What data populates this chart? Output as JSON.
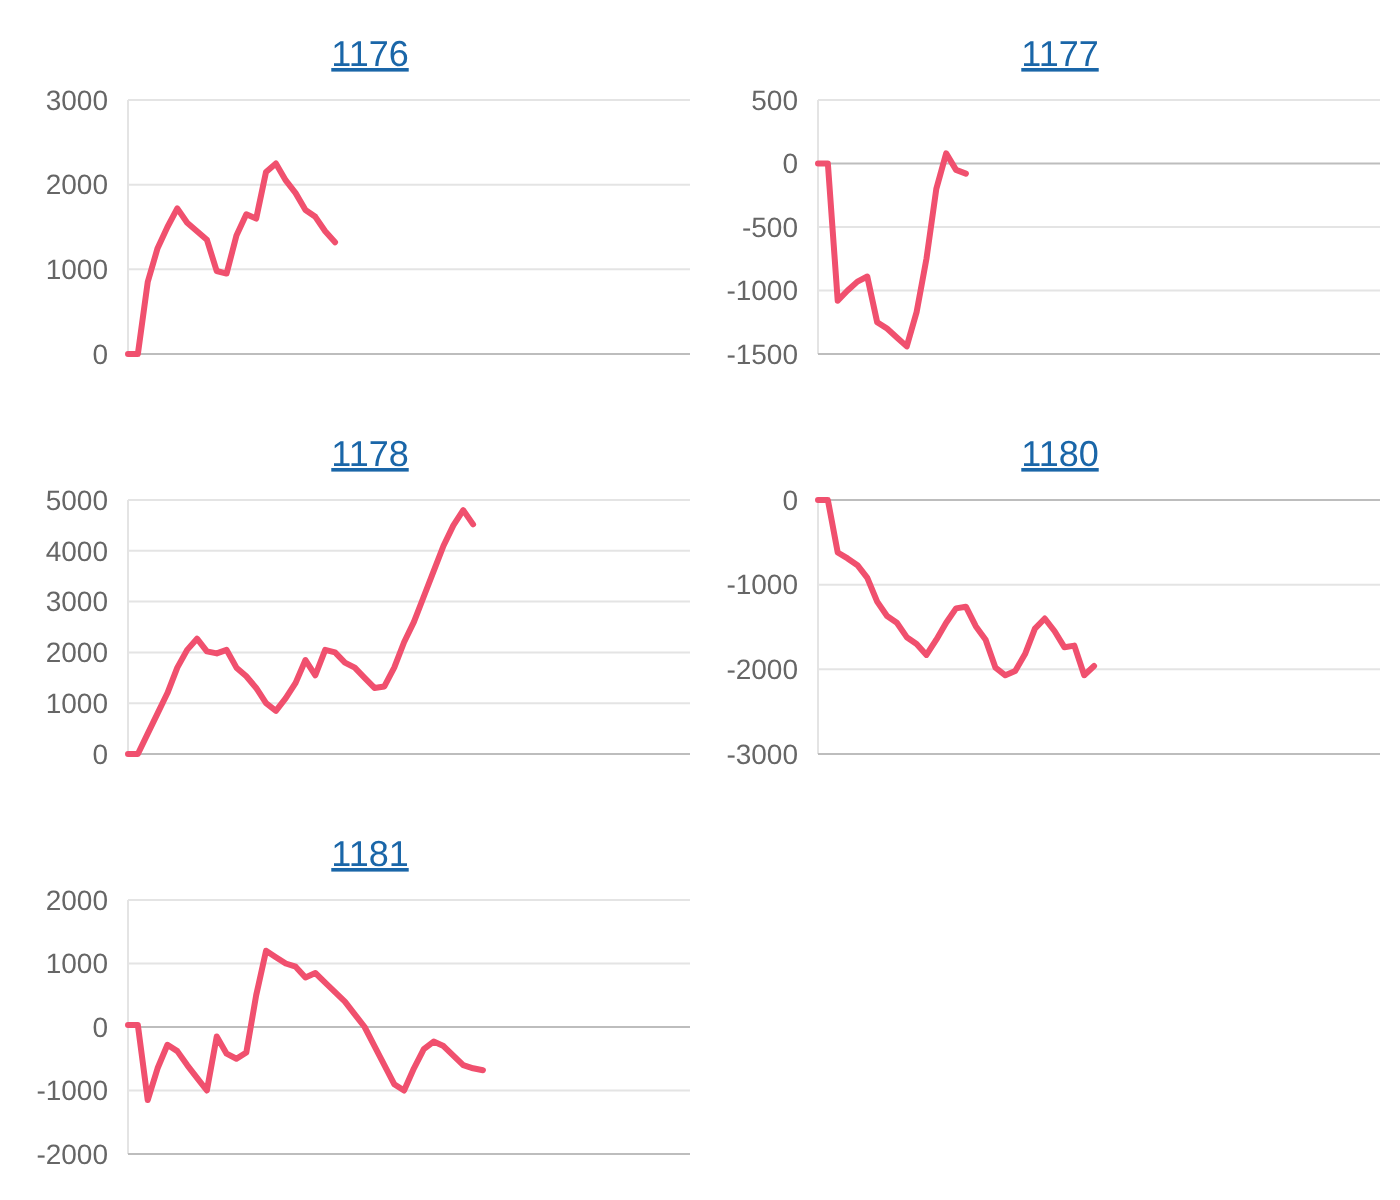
{
  "chart_data": [
    {
      "type": "line",
      "title": "1176",
      "categories": [
        null,
        null,
        null,
        null,
        null,
        null,
        null,
        null,
        null,
        null,
        null,
        null,
        null,
        null,
        null,
        null,
        null,
        null,
        null,
        null,
        null,
        null,
        null,
        null,
        null,
        null,
        null,
        null,
        null,
        null,
        null,
        null,
        null,
        null,
        null,
        null,
        null,
        null,
        null,
        null,
        null,
        null,
        null,
        null,
        null,
        null,
        null,
        null,
        null,
        null,
        null,
        null,
        null,
        null,
        null,
        null,
        null,
        null
      ],
      "series": [
        {
          "color": "#f0506e",
          "values": [
            0,
            0,
            850,
            1250,
            1500,
            1720,
            1550,
            1450,
            1350,
            980,
            950,
            1400,
            1650,
            1600,
            2150,
            2250,
            2050,
            1900,
            1700,
            1620,
            1450,
            1320,
            null,
            null,
            null,
            null,
            null,
            null,
            null,
            null,
            null,
            null,
            null,
            null,
            null,
            null,
            null,
            null,
            null,
            null,
            null,
            null,
            null,
            null,
            null,
            null,
            null,
            null,
            null,
            null,
            null,
            null,
            null,
            null,
            null,
            null,
            null,
            null
          ]
        }
      ],
      "ylim": [
        0,
        3000
      ],
      "yticks": [
        0,
        1000,
        2000,
        3000
      ],
      "grid": "y",
      "tick_labels": "y",
      "marker": "none",
      "line_style": "solid"
    },
    {
      "type": "line",
      "title": "1177",
      "categories": [
        null,
        null,
        null,
        null,
        null,
        null,
        null,
        null,
        null,
        null,
        null,
        null,
        null,
        null,
        null,
        null,
        null,
        null,
        null,
        null,
        null,
        null,
        null,
        null,
        null,
        null,
        null,
        null,
        null,
        null,
        null,
        null,
        null,
        null,
        null,
        null,
        null,
        null,
        null,
        null,
        null,
        null,
        null,
        null,
        null,
        null,
        null,
        null,
        null,
        null,
        null,
        null,
        null,
        null,
        null,
        null,
        null,
        null
      ],
      "series": [
        {
          "color": "#f0506e",
          "values": [
            0,
            0,
            -1080,
            -1000,
            -930,
            -890,
            -1250,
            -1300,
            -1370,
            -1440,
            -1170,
            -750,
            -200,
            80,
            -50,
            -80,
            null,
            null,
            null,
            null,
            null,
            null,
            null,
            null,
            null,
            null,
            null,
            null,
            null,
            null,
            null,
            null,
            null,
            null,
            null,
            null,
            null,
            null,
            null,
            null,
            null,
            null,
            null,
            null,
            null,
            null,
            null,
            null,
            null,
            null,
            null,
            null,
            null,
            null,
            null,
            null,
            null,
            null
          ]
        }
      ],
      "ylim": [
        -1500,
        500
      ],
      "yticks": [
        -1500,
        -1000,
        -500,
        0,
        500
      ],
      "grid": "y",
      "tick_labels": "y",
      "marker": "none",
      "line_style": "solid"
    },
    {
      "type": "line",
      "title": "1178",
      "categories": [
        null,
        null,
        null,
        null,
        null,
        null,
        null,
        null,
        null,
        null,
        null,
        null,
        null,
        null,
        null,
        null,
        null,
        null,
        null,
        null,
        null,
        null,
        null,
        null,
        null,
        null,
        null,
        null,
        null,
        null,
        null,
        null,
        null,
        null,
        null,
        null,
        null,
        null,
        null,
        null,
        null,
        null,
        null,
        null,
        null,
        null,
        null,
        null,
        null,
        null,
        null,
        null,
        null,
        null,
        null,
        null,
        null,
        null
      ],
      "series": [
        {
          "color": "#f0506e",
          "values": [
            0,
            0,
            400,
            800,
            1200,
            1700,
            2050,
            2270,
            2020,
            1980,
            2050,
            1700,
            1530,
            1300,
            1000,
            850,
            1100,
            1400,
            1850,
            1550,
            2050,
            2000,
            1800,
            1700,
            1500,
            1300,
            1330,
            1700,
            2200,
            2600,
            3100,
            3600,
            4100,
            4500,
            4800,
            4520,
            null,
            null,
            null,
            null,
            null,
            null,
            null,
            null,
            null,
            null,
            null,
            null,
            null,
            null,
            null,
            null,
            null,
            null,
            null,
            null,
            null,
            null
          ]
        }
      ],
      "ylim": [
        0,
        5000
      ],
      "yticks": [
        0,
        1000,
        2000,
        3000,
        4000,
        5000
      ],
      "grid": "y",
      "tick_labels": "y",
      "marker": "none",
      "line_style": "solid"
    },
    {
      "type": "line",
      "title": "1180",
      "categories": [
        null,
        null,
        null,
        null,
        null,
        null,
        null,
        null,
        null,
        null,
        null,
        null,
        null,
        null,
        null,
        null,
        null,
        null,
        null,
        null,
        null,
        null,
        null,
        null,
        null,
        null,
        null,
        null,
        null,
        null,
        null,
        null,
        null,
        null,
        null,
        null,
        null,
        null,
        null,
        null,
        null,
        null,
        null,
        null,
        null,
        null,
        null,
        null,
        null,
        null,
        null,
        null,
        null,
        null,
        null,
        null,
        null,
        null
      ],
      "series": [
        {
          "color": "#f0506e",
          "values": [
            0,
            0,
            -620,
            -690,
            -770,
            -920,
            -1200,
            -1370,
            -1450,
            -1620,
            -1700,
            -1830,
            -1650,
            -1450,
            -1280,
            -1260,
            -1490,
            -1650,
            -1980,
            -2070,
            -2020,
            -1820,
            -1520,
            -1400,
            -1550,
            -1740,
            -1720,
            -2070,
            -1960,
            null,
            null,
            null,
            null,
            null,
            null,
            null,
            null,
            null,
            null,
            null,
            null,
            null,
            null,
            null,
            null,
            null,
            null,
            null,
            null,
            null,
            null,
            null,
            null,
            null,
            null,
            null,
            null,
            null
          ]
        }
      ],
      "ylim": [
        -3000,
        0
      ],
      "yticks": [
        -3000,
        -2000,
        -1000,
        0
      ],
      "grid": "y",
      "tick_labels": "y",
      "marker": "none",
      "line_style": "solid"
    },
    {
      "type": "line",
      "title": "1181",
      "categories": [
        null,
        null,
        null,
        null,
        null,
        null,
        null,
        null,
        null,
        null,
        null,
        null,
        null,
        null,
        null,
        null,
        null,
        null,
        null,
        null,
        null,
        null,
        null,
        null,
        null,
        null,
        null,
        null,
        null,
        null,
        null,
        null,
        null,
        null,
        null,
        null,
        null,
        null,
        null,
        null,
        null,
        null,
        null,
        null,
        null,
        null,
        null,
        null,
        null,
        null,
        null,
        null,
        null,
        null,
        null,
        null,
        null,
        null
      ],
      "series": [
        {
          "color": "#f0506e",
          "values": [
            30,
            30,
            -1150,
            -650,
            -280,
            -380,
            -600,
            -800,
            -1000,
            -150,
            -420,
            -500,
            -400,
            500,
            1200,
            1100,
            1000,
            950,
            780,
            850,
            700,
            550,
            400,
            200,
            0,
            -300,
            -600,
            -900,
            -1000,
            -650,
            -350,
            -230,
            -300,
            -450,
            -600,
            -650,
            -680,
            null,
            null,
            null,
            null,
            null,
            null,
            null,
            null,
            null,
            null,
            null,
            null,
            null,
            null,
            null,
            null,
            null,
            null,
            null,
            null,
            null
          ]
        }
      ],
      "ylim": [
        -2000,
        2000
      ],
      "yticks": [
        -2000,
        -1000,
        0,
        1000,
        2000
      ],
      "grid": "y",
      "tick_labels": "y",
      "marker": "none",
      "line_style": "solid"
    }
  ]
}
